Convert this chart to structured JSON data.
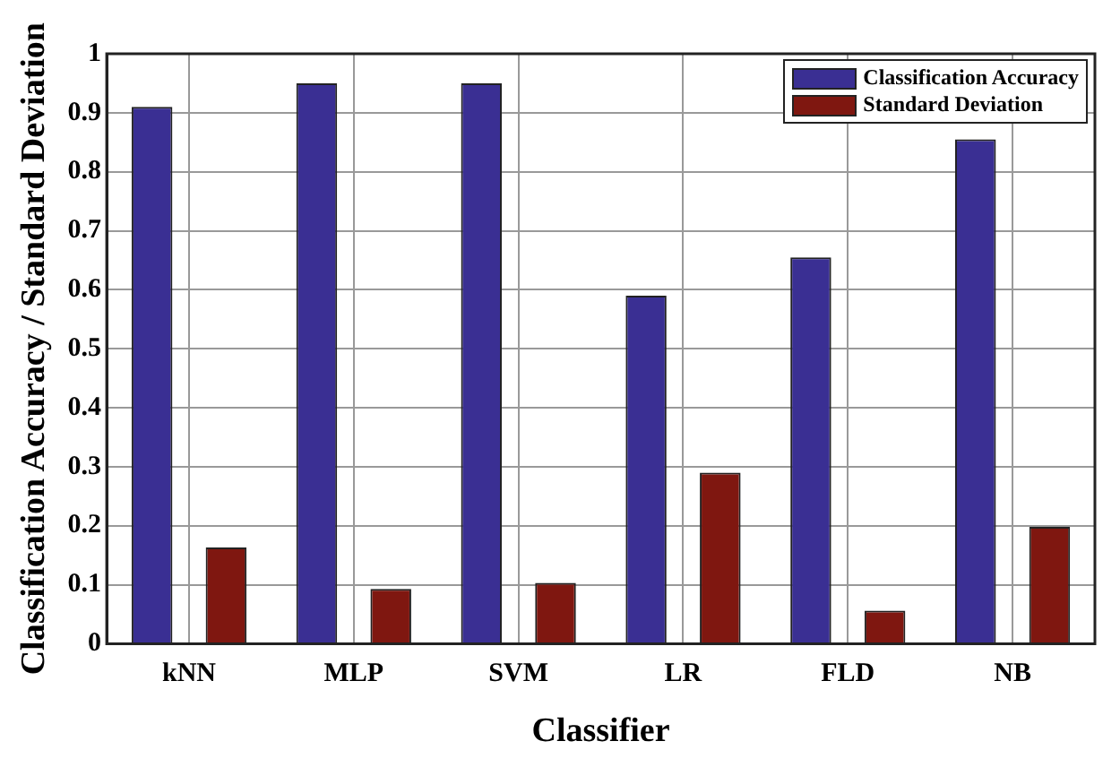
{
  "chart_data": {
    "type": "bar",
    "xlabel": "Classifier",
    "ylabel": "Classification Accuracy / Standard Deviation",
    "categories": [
      "kNN",
      "MLP",
      "SVM",
      "LR",
      "FLD",
      "NB"
    ],
    "series": [
      {
        "name": "Classification Accuracy",
        "color": "#3a2f93",
        "values": [
          0.91,
          0.95,
          0.95,
          0.59,
          0.655,
          0.855
        ]
      },
      {
        "name": "Standard Deviation",
        "color": "#7f1710",
        "values": [
          0.163,
          0.093,
          0.103,
          0.29,
          0.056,
          0.198
        ]
      }
    ],
    "ylim": [
      0,
      1
    ],
    "yticks": [
      0,
      0.1,
      0.2,
      0.3,
      0.4,
      0.5,
      0.6,
      0.7,
      0.8,
      0.9,
      1
    ],
    "grid": true,
    "legend": "top right"
  }
}
